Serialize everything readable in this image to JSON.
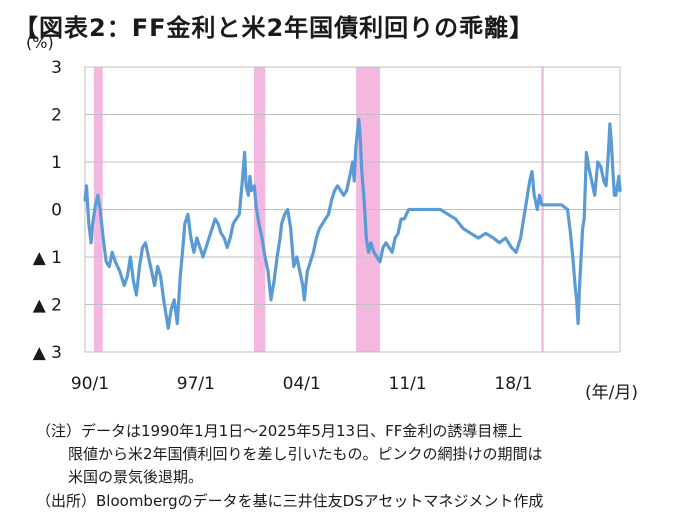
{
  "title": "【図表2：FF金利と米2年国債利回りの乖離】",
  "unit": "(%)",
  "x_unit": "(年/月)",
  "notes": {
    "line1": "（注）データは1990年1月1日～2025年5月13日、FF金利の誘導目標上",
    "line2": "限値から米2年国債利回りを差し引いたもの。ピンクの網掛けの期間は",
    "line3": "米国の景気後退期。",
    "line4": "（出所）Bloombergのデータを基に三井住友DSアセットマネジメント作成"
  },
  "chart_data": {
    "type": "line",
    "title": "FF金利と米2年国債利回りの乖離",
    "ylabel": "%",
    "xlabel": "年/月",
    "xlim": [
      1990.0,
      2025.37
    ],
    "ylim": [
      -3,
      3
    ],
    "y_ticks": [
      {
        "value": 3,
        "label": "3"
      },
      {
        "value": 2,
        "label": "2"
      },
      {
        "value": 1,
        "label": "1"
      },
      {
        "value": 0,
        "label": "0"
      },
      {
        "value": -1,
        "label": "▲ 1"
      },
      {
        "value": -2,
        "label": "▲ 2"
      },
      {
        "value": -3,
        "label": "▲ 3"
      }
    ],
    "x_ticks": [
      {
        "value": 1990.0,
        "label": "90/1"
      },
      {
        "value": 1997.0,
        "label": "97/1"
      },
      {
        "value": 2004.0,
        "label": "04/1"
      },
      {
        "value": 2011.0,
        "label": "11/1"
      },
      {
        "value": 2018.0,
        "label": "18/1"
      }
    ],
    "grid": "horizontal",
    "line_color": "#5b9bd5",
    "recession_color": "#f4b8e0",
    "recessions": [
      [
        1990.58,
        1991.17
      ],
      [
        2001.17,
        2001.92
      ],
      [
        2007.92,
        2009.5
      ],
      [
        2020.17,
        2020.33
      ]
    ],
    "series": [
      {
        "values": [
          [
            1990.0,
            0.2
          ],
          [
            1990.1,
            0.5
          ],
          [
            1990.25,
            -0.3
          ],
          [
            1990.4,
            -0.7
          ],
          [
            1990.5,
            -0.3
          ],
          [
            1990.7,
            0.1
          ],
          [
            1990.85,
            0.3
          ],
          [
            1991.0,
            0.0
          ],
          [
            1991.2,
            -0.6
          ],
          [
            1991.4,
            -1.1
          ],
          [
            1991.6,
            -1.2
          ],
          [
            1991.8,
            -0.9
          ],
          [
            1992.0,
            -1.1
          ],
          [
            1992.3,
            -1.3
          ],
          [
            1992.6,
            -1.6
          ],
          [
            1992.8,
            -1.4
          ],
          [
            1993.0,
            -1.0
          ],
          [
            1993.2,
            -1.5
          ],
          [
            1993.4,
            -1.8
          ],
          [
            1993.6,
            -1.2
          ],
          [
            1993.8,
            -0.8
          ],
          [
            1994.0,
            -0.7
          ],
          [
            1994.2,
            -1.0
          ],
          [
            1994.4,
            -1.3
          ],
          [
            1994.6,
            -1.6
          ],
          [
            1994.8,
            -1.2
          ],
          [
            1995.0,
            -1.4
          ],
          [
            1995.2,
            -1.9
          ],
          [
            1995.4,
            -2.3
          ],
          [
            1995.5,
            -2.5
          ],
          [
            1995.7,
            -2.1
          ],
          [
            1995.9,
            -1.9
          ],
          [
            1996.1,
            -2.4
          ],
          [
            1996.3,
            -1.4
          ],
          [
            1996.5,
            -0.7
          ],
          [
            1996.6,
            -0.3
          ],
          [
            1996.8,
            -0.1
          ],
          [
            1997.0,
            -0.6
          ],
          [
            1997.2,
            -0.9
          ],
          [
            1997.4,
            -0.6
          ],
          [
            1997.6,
            -0.8
          ],
          [
            1997.8,
            -1.0
          ],
          [
            1998.0,
            -0.8
          ],
          [
            1998.2,
            -0.6
          ],
          [
            1998.4,
            -0.4
          ],
          [
            1998.6,
            -0.2
          ],
          [
            1998.8,
            -0.3
          ],
          [
            1999.0,
            -0.5
          ],
          [
            1999.2,
            -0.6
          ],
          [
            1999.4,
            -0.8
          ],
          [
            1999.6,
            -0.6
          ],
          [
            1999.8,
            -0.3
          ],
          [
            2000.0,
            -0.2
          ],
          [
            2000.2,
            -0.1
          ],
          [
            2000.4,
            0.6
          ],
          [
            2000.55,
            1.2
          ],
          [
            2000.65,
            0.5
          ],
          [
            2000.8,
            0.3
          ],
          [
            2000.9,
            0.7
          ],
          [
            2001.0,
            0.4
          ],
          [
            2001.2,
            0.5
          ],
          [
            2001.3,
            0.1
          ],
          [
            2001.5,
            -0.3
          ],
          [
            2001.7,
            -0.6
          ],
          [
            2001.9,
            -1.0
          ],
          [
            2002.1,
            -1.3
          ],
          [
            2002.3,
            -1.9
          ],
          [
            2002.5,
            -1.5
          ],
          [
            2002.7,
            -1.0
          ],
          [
            2002.9,
            -0.6
          ],
          [
            2003.0,
            -0.3
          ],
          [
            2003.2,
            -0.1
          ],
          [
            2003.4,
            0.0
          ],
          [
            2003.6,
            -0.4
          ],
          [
            2003.8,
            -1.2
          ],
          [
            2004.0,
            -1.0
          ],
          [
            2004.2,
            -1.3
          ],
          [
            2004.4,
            -1.6
          ],
          [
            2004.5,
            -1.9
          ],
          [
            2004.7,
            -1.3
          ],
          [
            2004.9,
            -1.1
          ],
          [
            2005.1,
            -0.9
          ],
          [
            2005.3,
            -0.6
          ],
          [
            2005.5,
            -0.4
          ],
          [
            2005.7,
            -0.3
          ],
          [
            2005.9,
            -0.2
          ],
          [
            2006.1,
            -0.1
          ],
          [
            2006.3,
            0.2
          ],
          [
            2006.5,
            0.4
          ],
          [
            2006.7,
            0.5
          ],
          [
            2006.9,
            0.4
          ],
          [
            2007.1,
            0.3
          ],
          [
            2007.3,
            0.4
          ],
          [
            2007.5,
            0.7
          ],
          [
            2007.7,
            1.0
          ],
          [
            2007.8,
            0.6
          ],
          [
            2007.9,
            1.3
          ],
          [
            2008.0,
            1.6
          ],
          [
            2008.1,
            1.9
          ],
          [
            2008.2,
            1.5
          ],
          [
            2008.3,
            0.8
          ],
          [
            2008.45,
            0.2
          ],
          [
            2008.6,
            -0.6
          ],
          [
            2008.75,
            -0.9
          ],
          [
            2008.9,
            -0.7
          ],
          [
            2009.1,
            -0.9
          ],
          [
            2009.3,
            -1.0
          ],
          [
            2009.5,
            -1.1
          ],
          [
            2009.7,
            -0.8
          ],
          [
            2009.9,
            -0.7
          ],
          [
            2010.1,
            -0.8
          ],
          [
            2010.3,
            -0.9
          ],
          [
            2010.5,
            -0.6
          ],
          [
            2010.7,
            -0.5
          ],
          [
            2010.9,
            -0.2
          ],
          [
            2011.1,
            -0.2
          ],
          [
            2011.4,
            0.0
          ],
          [
            2011.7,
            0.0
          ],
          [
            2012.0,
            0.0
          ],
          [
            2012.5,
            0.0
          ],
          [
            2013.0,
            0.0
          ],
          [
            2013.5,
            0.0
          ],
          [
            2014.0,
            -0.1
          ],
          [
            2014.5,
            -0.2
          ],
          [
            2015.0,
            -0.4
          ],
          [
            2015.5,
            -0.5
          ],
          [
            2016.0,
            -0.6
          ],
          [
            2016.5,
            -0.5
          ],
          [
            2017.0,
            -0.6
          ],
          [
            2017.4,
            -0.7
          ],
          [
            2017.8,
            -0.6
          ],
          [
            2018.2,
            -0.8
          ],
          [
            2018.5,
            -0.9
          ],
          [
            2018.8,
            -0.6
          ],
          [
            2019.0,
            -0.2
          ],
          [
            2019.2,
            0.2
          ],
          [
            2019.4,
            0.6
          ],
          [
            2019.55,
            0.8
          ],
          [
            2019.7,
            0.3
          ],
          [
            2019.9,
            0.0
          ],
          [
            2020.05,
            0.3
          ],
          [
            2020.2,
            0.1
          ],
          [
            2020.5,
            0.1
          ],
          [
            2021.0,
            0.1
          ],
          [
            2021.5,
            0.1
          ],
          [
            2021.9,
            0.0
          ],
          [
            2022.1,
            -0.5
          ],
          [
            2022.25,
            -1.0
          ],
          [
            2022.4,
            -1.6
          ],
          [
            2022.5,
            -1.9
          ],
          [
            2022.6,
            -2.4
          ],
          [
            2022.7,
            -1.6
          ],
          [
            2022.8,
            -1.0
          ],
          [
            2022.9,
            -0.4
          ],
          [
            2023.0,
            -0.2
          ],
          [
            2023.15,
            1.2
          ],
          [
            2023.3,
            0.9
          ],
          [
            2023.5,
            0.6
          ],
          [
            2023.7,
            0.3
          ],
          [
            2023.9,
            1.0
          ],
          [
            2024.1,
            0.9
          ],
          [
            2024.3,
            0.6
          ],
          [
            2024.45,
            0.5
          ],
          [
            2024.6,
            1.2
          ],
          [
            2024.7,
            1.8
          ],
          [
            2024.8,
            1.4
          ],
          [
            2024.9,
            0.8
          ],
          [
            2025.0,
            0.3
          ],
          [
            2025.1,
            0.3
          ],
          [
            2025.2,
            0.5
          ],
          [
            2025.3,
            0.7
          ],
          [
            2025.37,
            0.4
          ]
        ]
      }
    ]
  }
}
